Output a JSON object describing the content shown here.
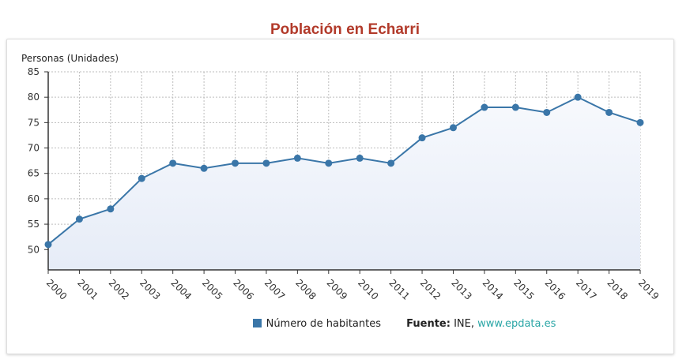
{
  "chart_data": {
    "type": "area",
    "title": "Población en Echarri",
    "ylabel": "Personas (Unidades)",
    "xlabel": "",
    "x": [
      "2000",
      "2001",
      "2002",
      "2003",
      "2004",
      "2005",
      "2006",
      "2007",
      "2008",
      "2009",
      "2010",
      "2011",
      "2012",
      "2013",
      "2014",
      "2015",
      "2016",
      "2017",
      "2018",
      "2019"
    ],
    "series": [
      {
        "name": "Número de habitantes",
        "values": [
          51,
          56,
          58,
          64,
          67,
          66,
          67,
          67,
          68,
          67,
          68,
          67,
          72,
          74,
          78,
          78,
          77,
          80,
          77,
          75
        ]
      }
    ],
    "ylim": [
      46,
      85
    ],
    "yticks": [
      50,
      55,
      60,
      65,
      70,
      75,
      80,
      85
    ],
    "grid": true,
    "legend_position": "bottom",
    "colors": {
      "line": "#3a76a8",
      "title": "#b23a2a",
      "link": "#2aa6a6"
    }
  },
  "source": {
    "label": "Fuente:",
    "org": "INE,",
    "link": "www.epdata.es"
  }
}
